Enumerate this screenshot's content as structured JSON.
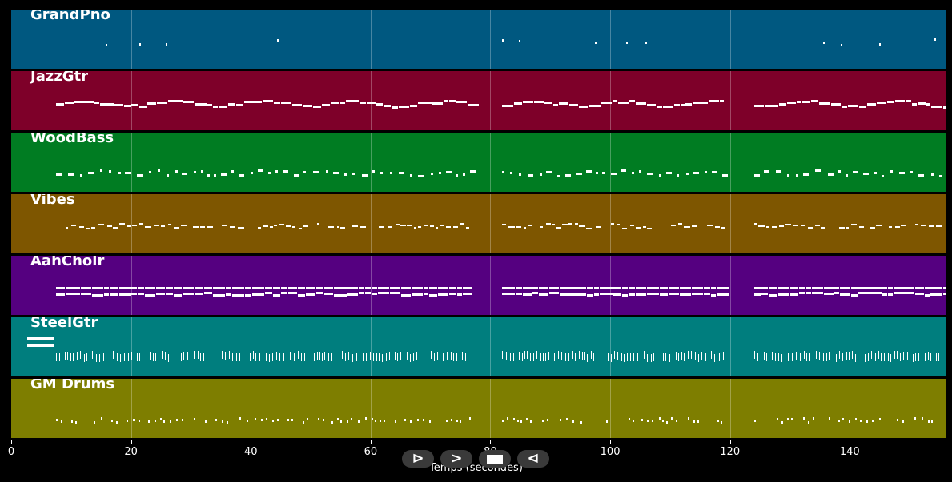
{
  "window": {
    "xlabel": "Temps (secondes)"
  },
  "axis": {
    "x_min": 0,
    "x_max": 156,
    "ticks": [
      0,
      20,
      40,
      60,
      80,
      100,
      120,
      140
    ]
  },
  "tracks": [
    {
      "name": "GrandPno",
      "color": "#005880",
      "pattern": "piano"
    },
    {
      "name": "JazzGtr",
      "color": "#7e0029",
      "pattern": "melody"
    },
    {
      "name": "WoodBass",
      "color": "#007c22",
      "pattern": "bass"
    },
    {
      "name": "Vibes",
      "color": "#7e5600",
      "pattern": "vibes"
    },
    {
      "name": "AahChoir",
      "color": "#550080",
      "pattern": "choir"
    },
    {
      "name": "SteelGtr",
      "color": "#007e7e",
      "pattern": "strum"
    },
    {
      "name": "GM Drums",
      "color": "#7e7e00",
      "pattern": "drums"
    }
  ],
  "sections": [
    [
      7.5,
      77
    ],
    [
      82,
      119
    ],
    [
      124,
      156
    ]
  ],
  "controls": [
    {
      "name": "play-button",
      "glyph": "⊳"
    },
    {
      "name": "fast-forward-button",
      "glyph": ">"
    },
    {
      "name": "stop-button",
      "glyph": ""
    },
    {
      "name": "rewind-button",
      "glyph": "⊲"
    }
  ]
}
